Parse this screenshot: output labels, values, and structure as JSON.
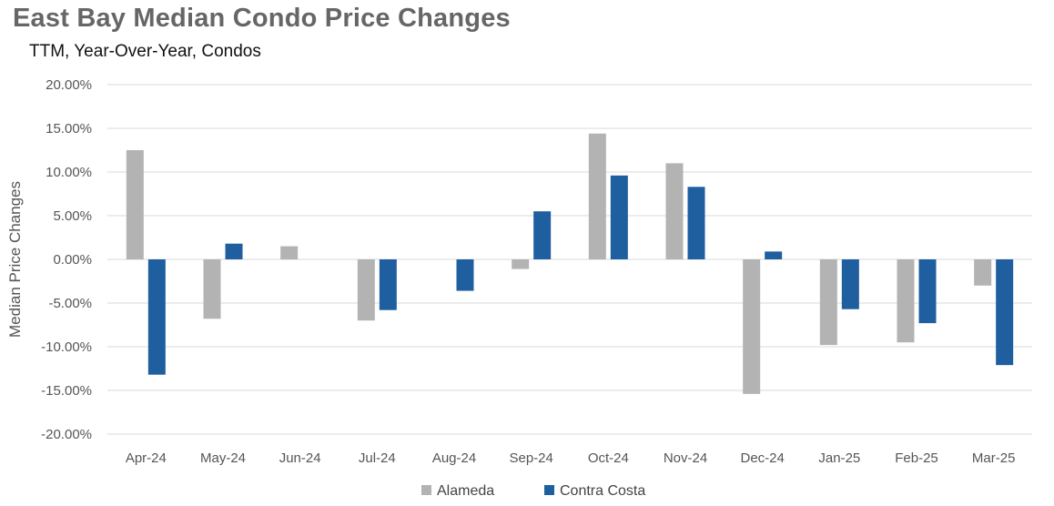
{
  "chart_data": {
    "type": "bar",
    "title": "East Bay Median Condo Price Changes",
    "subtitle": "TTM, Year-Over-Year,  Condos",
    "ylabel": "Median Price Changes",
    "xlabel": "",
    "categories": [
      "Apr-24",
      "May-24",
      "Jun-24",
      "Jul-24",
      "Aug-24",
      "Sep-24",
      "Oct-24",
      "Nov-24",
      "Dec-24",
      "Jan-25",
      "Feb-25",
      "Mar-25"
    ],
    "series": [
      {
        "name": "Alameda",
        "color": "#b3b3b3",
        "values": [
          12.5,
          -6.8,
          1.5,
          -7.0,
          0,
          -1.1,
          14.4,
          11.0,
          -15.4,
          -9.8,
          -9.5,
          -3.0
        ]
      },
      {
        "name": "Contra Costa",
        "color": "#1f5fa0",
        "values": [
          -13.2,
          1.8,
          0,
          -5.8,
          -3.6,
          5.5,
          9.6,
          8.3,
          0.9,
          -5.7,
          -7.3,
          -12.1
        ]
      }
    ],
    "ylim": [
      -20,
      20
    ],
    "yticks": [
      "20.00%",
      "15.00%",
      "10.00%",
      "5.00%",
      "0.00%",
      "-5.00%",
      "-10.00%",
      "-15.00%",
      "-20.00%"
    ],
    "grid": true,
    "legend_position": "bottom"
  }
}
